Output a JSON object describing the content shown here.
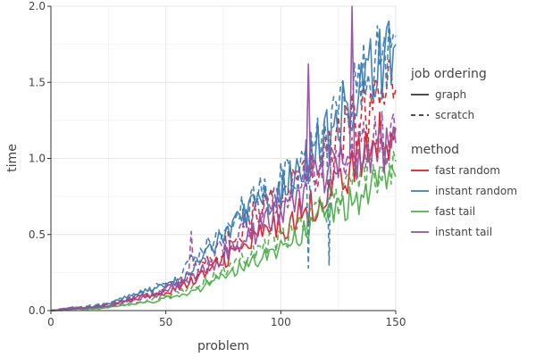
{
  "chart_data": {
    "type": "line",
    "xlabel": "problem",
    "ylabel": "time",
    "xlim": [
      0,
      150
    ],
    "ylim": [
      0,
      2.0
    ],
    "x_ticks": [
      0,
      50,
      100,
      150
    ],
    "y_ticks": [
      0.0,
      0.5,
      1.0,
      1.5,
      2.0
    ],
    "x_tick_labels": [
      "0",
      "50",
      "100",
      "150"
    ],
    "y_tick_labels": [
      "0.0",
      "0.5",
      "1.0",
      "1.5",
      "2.0"
    ],
    "grid": true,
    "legend_placement": "right",
    "legends": [
      {
        "title": "job ordering",
        "kind": "linetype",
        "entries": [
          {
            "label": "graph",
            "dash": "solid"
          },
          {
            "label": "scratch",
            "dash": "dashed"
          }
        ]
      },
      {
        "title": "method",
        "kind": "color",
        "entries": [
          {
            "label": "fast random",
            "color": "#e41a1c"
          },
          {
            "label": "instant random",
            "color": "#377eb8"
          },
          {
            "label": "fast tail",
            "color": "#4daf4a"
          },
          {
            "label": "instant tail",
            "color": "#984ea3"
          }
        ]
      }
    ],
    "x": [
      0,
      5,
      10,
      15,
      20,
      25,
      30,
      35,
      40,
      45,
      50,
      55,
      60,
      65,
      70,
      75,
      80,
      85,
      90,
      95,
      100,
      105,
      110,
      115,
      120,
      125,
      130,
      135,
      140,
      145,
      150
    ],
    "series": [
      {
        "method": "fast random",
        "ordering": "graph",
        "color": "#e41a1c",
        "dash": "solid",
        "values": [
          0.0,
          0.01,
          0.01,
          0.01,
          0.02,
          0.03,
          0.05,
          0.07,
          0.09,
          0.1,
          0.12,
          0.15,
          0.18,
          0.22,
          0.28,
          0.33,
          0.38,
          0.42,
          0.48,
          0.52,
          0.55,
          0.6,
          0.65,
          0.7,
          0.78,
          0.85,
          0.92,
          1.0,
          1.08,
          1.15,
          1.2
        ]
      },
      {
        "method": "fast random",
        "ordering": "scratch",
        "color": "#e41a1c",
        "dash": "dashed",
        "values": [
          0.0,
          0.01,
          0.02,
          0.02,
          0.03,
          0.04,
          0.06,
          0.08,
          0.1,
          0.12,
          0.14,
          0.17,
          0.22,
          0.28,
          0.35,
          0.42,
          0.5,
          0.58,
          0.65,
          0.7,
          0.75,
          0.82,
          0.88,
          0.95,
          1.02,
          1.1,
          1.2,
          1.28,
          1.35,
          1.4,
          1.45
        ]
      },
      {
        "method": "instant random",
        "ordering": "graph",
        "color": "#377eb8",
        "dash": "solid",
        "values": [
          0.0,
          0.01,
          0.02,
          0.02,
          0.03,
          0.05,
          0.07,
          0.1,
          0.12,
          0.14,
          0.17,
          0.2,
          0.25,
          0.32,
          0.4,
          0.48,
          0.55,
          0.62,
          0.7,
          0.75,
          0.8,
          0.88,
          0.95,
          1.05,
          1.15,
          1.25,
          1.35,
          1.45,
          1.55,
          1.65,
          1.75
        ]
      },
      {
        "method": "instant random",
        "ordering": "scratch",
        "color": "#377eb8",
        "dash": "dashed",
        "values": [
          0.0,
          0.01,
          0.02,
          0.03,
          0.04,
          0.05,
          0.07,
          0.1,
          0.13,
          0.15,
          0.18,
          0.22,
          0.3,
          0.38,
          0.45,
          0.52,
          0.6,
          0.68,
          0.75,
          0.8,
          0.85,
          0.92,
          1.0,
          1.1,
          1.2,
          1.3,
          1.4,
          1.5,
          1.6,
          1.7,
          1.8
        ]
      },
      {
        "method": "fast tail",
        "ordering": "graph",
        "color": "#4daf4a",
        "dash": "solid",
        "values": [
          0.0,
          0.0,
          0.01,
          0.01,
          0.01,
          0.02,
          0.03,
          0.04,
          0.05,
          0.06,
          0.08,
          0.1,
          0.12,
          0.15,
          0.18,
          0.22,
          0.26,
          0.3,
          0.34,
          0.38,
          0.42,
          0.47,
          0.52,
          0.58,
          0.63,
          0.68,
          0.72,
          0.75,
          0.8,
          0.85,
          0.88
        ]
      },
      {
        "method": "fast tail",
        "ordering": "scratch",
        "color": "#4daf4a",
        "dash": "dashed",
        "values": [
          0.0,
          0.01,
          0.01,
          0.02,
          0.02,
          0.03,
          0.04,
          0.05,
          0.06,
          0.08,
          0.1,
          0.12,
          0.15,
          0.18,
          0.22,
          0.26,
          0.3,
          0.35,
          0.4,
          0.44,
          0.48,
          0.52,
          0.58,
          0.64,
          0.7,
          0.76,
          0.82,
          0.86,
          0.9,
          0.94,
          0.98
        ]
      },
      {
        "method": "instant tail",
        "ordering": "graph",
        "color": "#984ea3",
        "dash": "solid",
        "values": [
          0.0,
          0.01,
          0.01,
          0.02,
          0.02,
          0.03,
          0.05,
          0.07,
          0.09,
          0.1,
          0.13,
          0.16,
          0.2,
          0.25,
          0.3,
          0.36,
          0.42,
          0.48,
          0.54,
          0.6,
          0.65,
          0.72,
          0.78,
          0.85,
          0.9,
          0.95,
          1.0,
          1.02,
          1.05,
          1.08,
          1.1
        ]
      },
      {
        "method": "instant tail",
        "ordering": "scratch",
        "color": "#984ea3",
        "dash": "dashed",
        "values": [
          0.0,
          0.01,
          0.02,
          0.02,
          0.03,
          0.04,
          0.06,
          0.08,
          0.1,
          0.12,
          0.15,
          0.18,
          0.24,
          0.3,
          0.36,
          0.42,
          0.48,
          0.55,
          0.62,
          0.68,
          0.72,
          0.78,
          0.84,
          0.9,
          0.96,
          1.0,
          1.04,
          1.08,
          1.1,
          1.12,
          1.15
        ]
      }
    ],
    "spikes": [
      {
        "series_index": 7,
        "x": 61.5,
        "y": 0.52
      },
      {
        "series_index": 6,
        "x": 112,
        "y": 1.62
      },
      {
        "series_index": 6,
        "x": 131,
        "y": 2.0
      },
      {
        "series_index": 3,
        "x": 121,
        "y": 0.3
      },
      {
        "series_index": 3,
        "x": 112,
        "y": 0.28
      }
    ]
  }
}
